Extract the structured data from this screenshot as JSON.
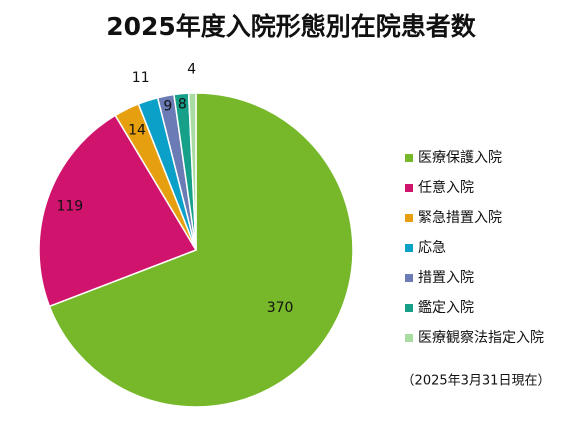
{
  "chart_data": {
    "type": "pie",
    "title": "2025年度入院形態別在院患者数",
    "categories": [
      "医療保護入院",
      "任意入院",
      "緊急措置入院",
      "応急",
      "措置入院",
      "鑑定入院",
      "医療観察法指定入院"
    ],
    "values": [
      370,
      119,
      14,
      11,
      9,
      8,
      4
    ],
    "colors": [
      "#76b82a",
      "#d0146e",
      "#e6a00f",
      "#0aa0c8",
      "#6a7bb5",
      "#16a08a",
      "#a8dca0"
    ],
    "note": "（2025年3月31日現在）"
  }
}
